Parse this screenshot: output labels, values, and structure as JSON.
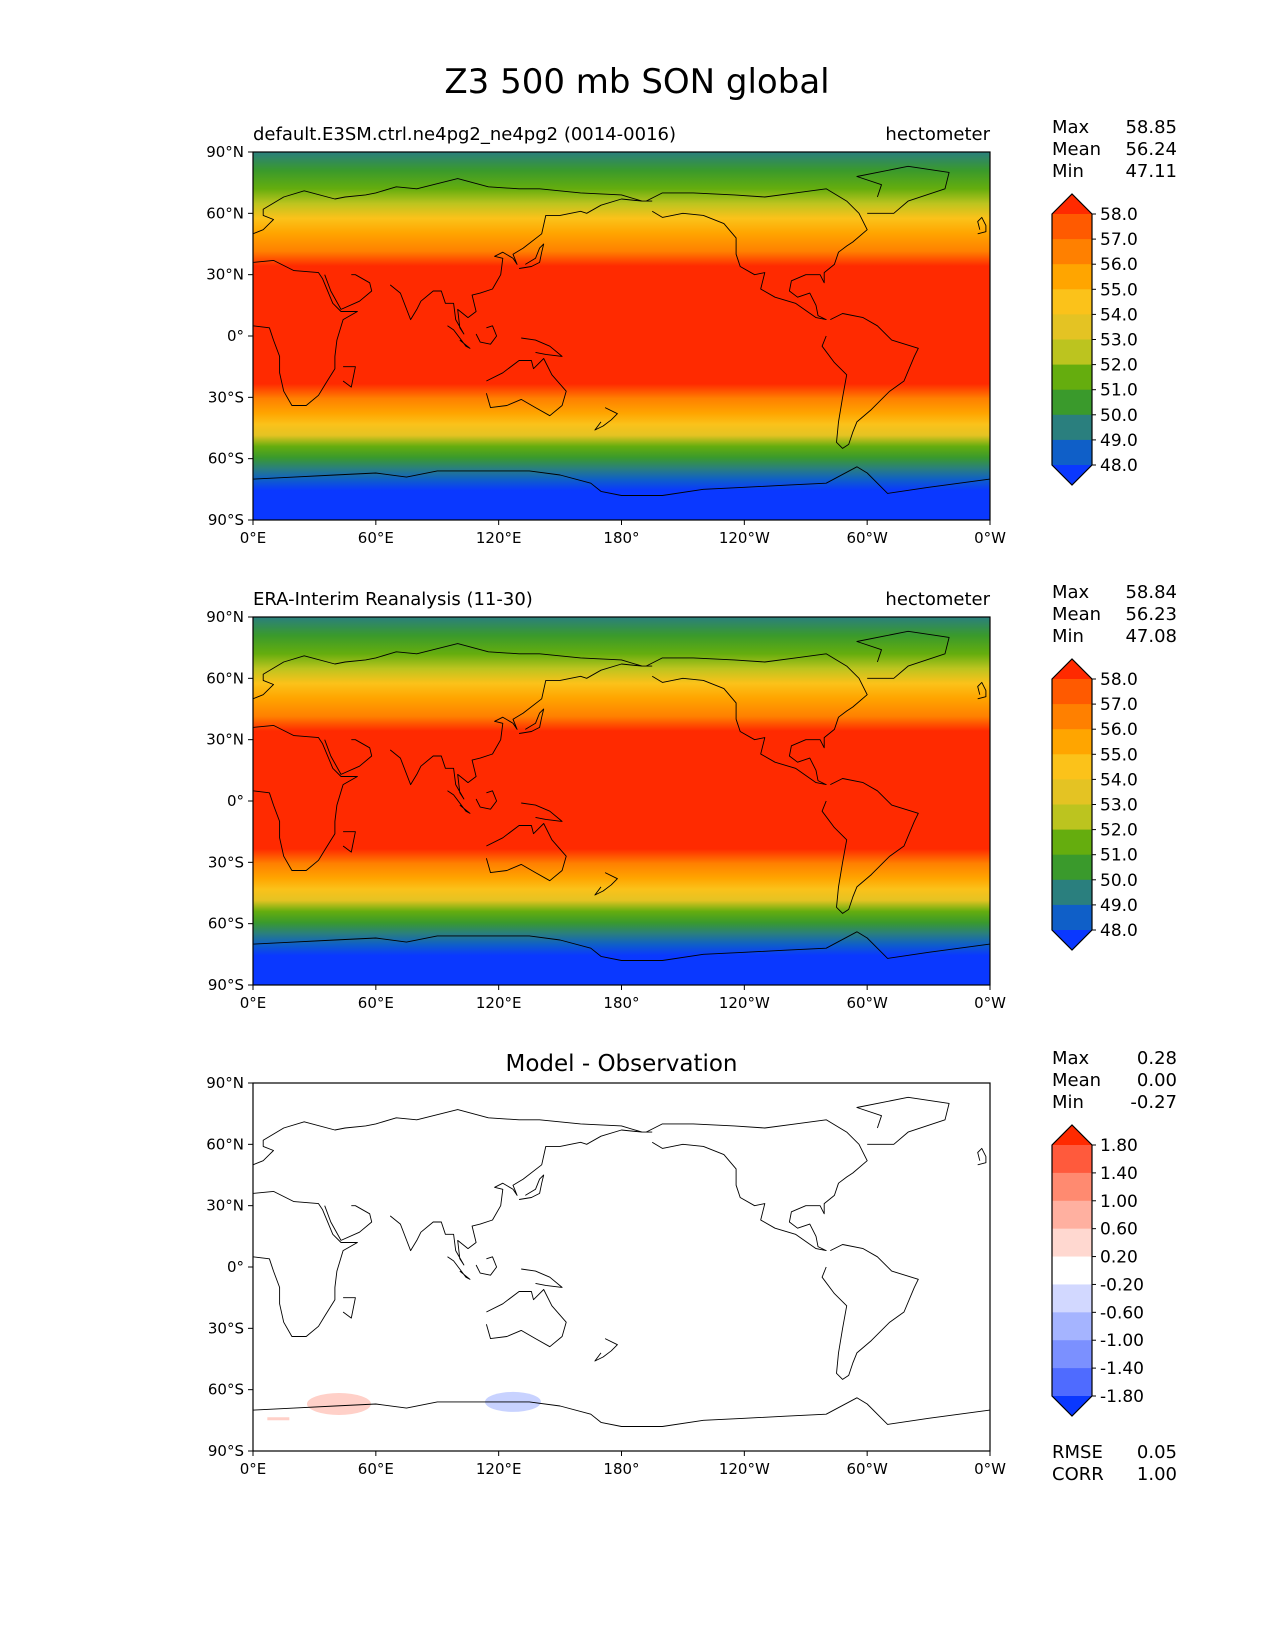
{
  "figure": {
    "title": "Z3 500 mb SON global"
  },
  "axes": {
    "lat_ticks": [
      "90°N",
      "60°N",
      "30°N",
      "0°",
      "30°S",
      "60°S",
      "90°S"
    ],
    "lon_ticks": [
      "0°E",
      "60°E",
      "120°E",
      "180°",
      "120°W",
      "60°W",
      "0°W"
    ]
  },
  "panels": [
    {
      "id": "model",
      "left_title": "default.E3SM.ctrl.ne4pg2_ne4pg2 (0014-0016)",
      "right_title": "hectometer",
      "center_title": "",
      "stats": [
        {
          "label": "Max",
          "value": "58.85"
        },
        {
          "label": "Mean",
          "value": "56.24"
        },
        {
          "label": "Min",
          "value": "47.11"
        }
      ],
      "colorbar": {
        "labels": [
          "58.0",
          "57.0",
          "56.0",
          "55.0",
          "54.0",
          "53.0",
          "52.0",
          "51.0",
          "50.0",
          "49.0",
          "48.0"
        ],
        "colors": [
          "#ff2a00",
          "#ff5a00",
          "#ff8000",
          "#ffa500",
          "#fbc21a",
          "#e4c323",
          "#bcc41f",
          "#65ad0e",
          "#3a9a2c",
          "#2a7f7e",
          "#0f5fc8",
          "#0a38ff"
        ]
      }
    },
    {
      "id": "obs",
      "left_title": "ERA-Interim Reanalysis (11-30)",
      "right_title": "hectometer",
      "center_title": "",
      "stats": [
        {
          "label": "Max",
          "value": "58.84"
        },
        {
          "label": "Mean",
          "value": "56.23"
        },
        {
          "label": "Min",
          "value": "47.08"
        }
      ],
      "colorbar": {
        "labels": [
          "58.0",
          "57.0",
          "56.0",
          "55.0",
          "54.0",
          "53.0",
          "52.0",
          "51.0",
          "50.0",
          "49.0",
          "48.0"
        ],
        "colors": [
          "#ff2a00",
          "#ff5a00",
          "#ff8000",
          "#ffa500",
          "#fbc21a",
          "#e4c323",
          "#bcc41f",
          "#65ad0e",
          "#3a9a2c",
          "#2a7f7e",
          "#0f5fc8",
          "#0a38ff"
        ]
      }
    },
    {
      "id": "diff",
      "left_title": "",
      "right_title": "",
      "center_title": "Model - Observation",
      "stats": [
        {
          "label": "Max",
          "value": "0.28"
        },
        {
          "label": "Mean",
          "value": "0.00"
        },
        {
          "label": "Min",
          "value": "-0.27"
        }
      ],
      "colorbar": {
        "labels": [
          "1.80",
          "1.40",
          "1.00",
          "0.60",
          "0.20",
          "-0.20",
          "-0.60",
          "-1.00",
          "-1.40",
          "-1.80"
        ],
        "colors": [
          "#ff2a00",
          "#ff5a3c",
          "#ff8a70",
          "#ffb0a0",
          "#ffd8d0",
          "#ffffff",
          "#d2d8ff",
          "#a5b4ff",
          "#7b90ff",
          "#4f6bff",
          "#0a38ff"
        ]
      },
      "metrics": [
        {
          "label": "RMSE",
          "value": "0.05"
        },
        {
          "label": "CORR",
          "value": "1.00"
        }
      ]
    }
  ]
}
